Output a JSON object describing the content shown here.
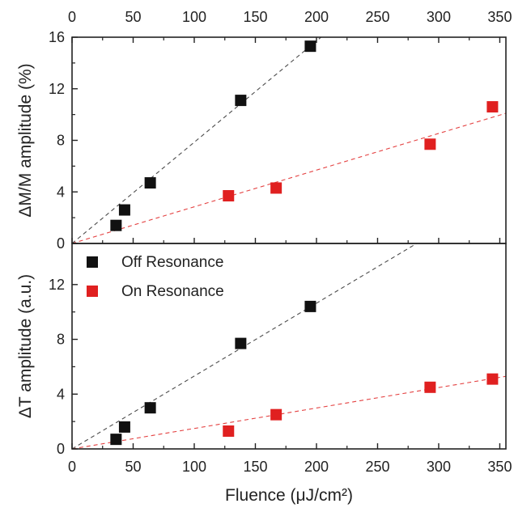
{
  "chart_data": {
    "type": "scatter",
    "shared_x": {
      "label": "Fluence (μJ/cm²)",
      "range": [
        0,
        355
      ],
      "ticks": [
        0,
        50,
        100,
        150,
        200,
        250,
        300,
        350
      ]
    },
    "colors": {
      "off": "#111111",
      "on": "#e02020"
    },
    "panels": [
      {
        "ylabel": "ΔM/M amplitude (%)",
        "ylim": [
          0,
          16
        ],
        "yticks": [
          0,
          4,
          8,
          12,
          16
        ],
        "series": [
          {
            "key": "off",
            "x": [
              36,
              43,
              64,
              138,
              195
            ],
            "y": [
              1.4,
              2.6,
              4.7,
              11.1,
              15.3
            ],
            "fit": {
              "x": [
                0,
                205
              ],
              "y": [
                0,
                16.1
              ]
            }
          },
          {
            "key": "on",
            "x": [
              128,
              167,
              293,
              344
            ],
            "y": [
              3.7,
              4.3,
              7.7,
              10.6
            ],
            "fit": {
              "x": [
                0,
                355
              ],
              "y": [
                0,
                10.1
              ]
            }
          }
        ]
      },
      {
        "ylabel": "ΔT amplitude (a.u.)",
        "ylim": [
          0,
          15
        ],
        "yticks": [
          0,
          4,
          8,
          12
        ],
        "legend": {
          "position": "top-left",
          "entries": [
            {
              "key": "off",
              "label": "Off Resonance"
            },
            {
              "key": "on",
              "label": "On Resonance"
            }
          ]
        },
        "series": [
          {
            "key": "off",
            "x": [
              36,
              43,
              64,
              138,
              195
            ],
            "y": [
              0.7,
              1.6,
              3.0,
              7.7,
              10.4
            ],
            "fit": {
              "x": [
                0,
                282
              ],
              "y": [
                0,
                15
              ]
            }
          },
          {
            "key": "on",
            "x": [
              128,
              167,
              293,
              344
            ],
            "y": [
              1.3,
              2.5,
              4.5,
              5.1
            ],
            "fit": {
              "x": [
                0,
                355
              ],
              "y": [
                0,
                5.3
              ]
            }
          }
        ]
      }
    ]
  }
}
